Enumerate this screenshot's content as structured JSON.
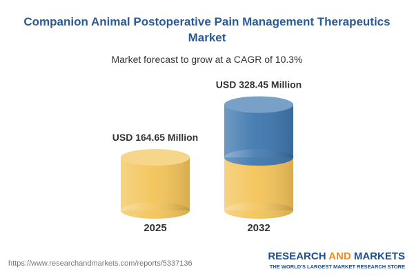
{
  "chart_data": {
    "type": "cylinder",
    "title": "Companion Animal Postoperative Pain Management Therapeutics Market",
    "subtitle": "Market forecast to grow at a CAGR of 10.3%",
    "categories": [
      "2025",
      "2032"
    ],
    "values": [
      164.65,
      328.45
    ],
    "value_labels": [
      "USD 164.65 Million",
      "USD 328.45 Million"
    ],
    "color": "#f3c45a",
    "growth_color": "#3f77ae"
  },
  "footer": {
    "url": "https://www.researchandmarkets.com/reports/5337136",
    "brand": [
      "RESEARCH",
      "AND",
      "MARKETS"
    ],
    "tagline": "THE WORLD'S LARGEST MARKET RESEARCH STORE"
  }
}
